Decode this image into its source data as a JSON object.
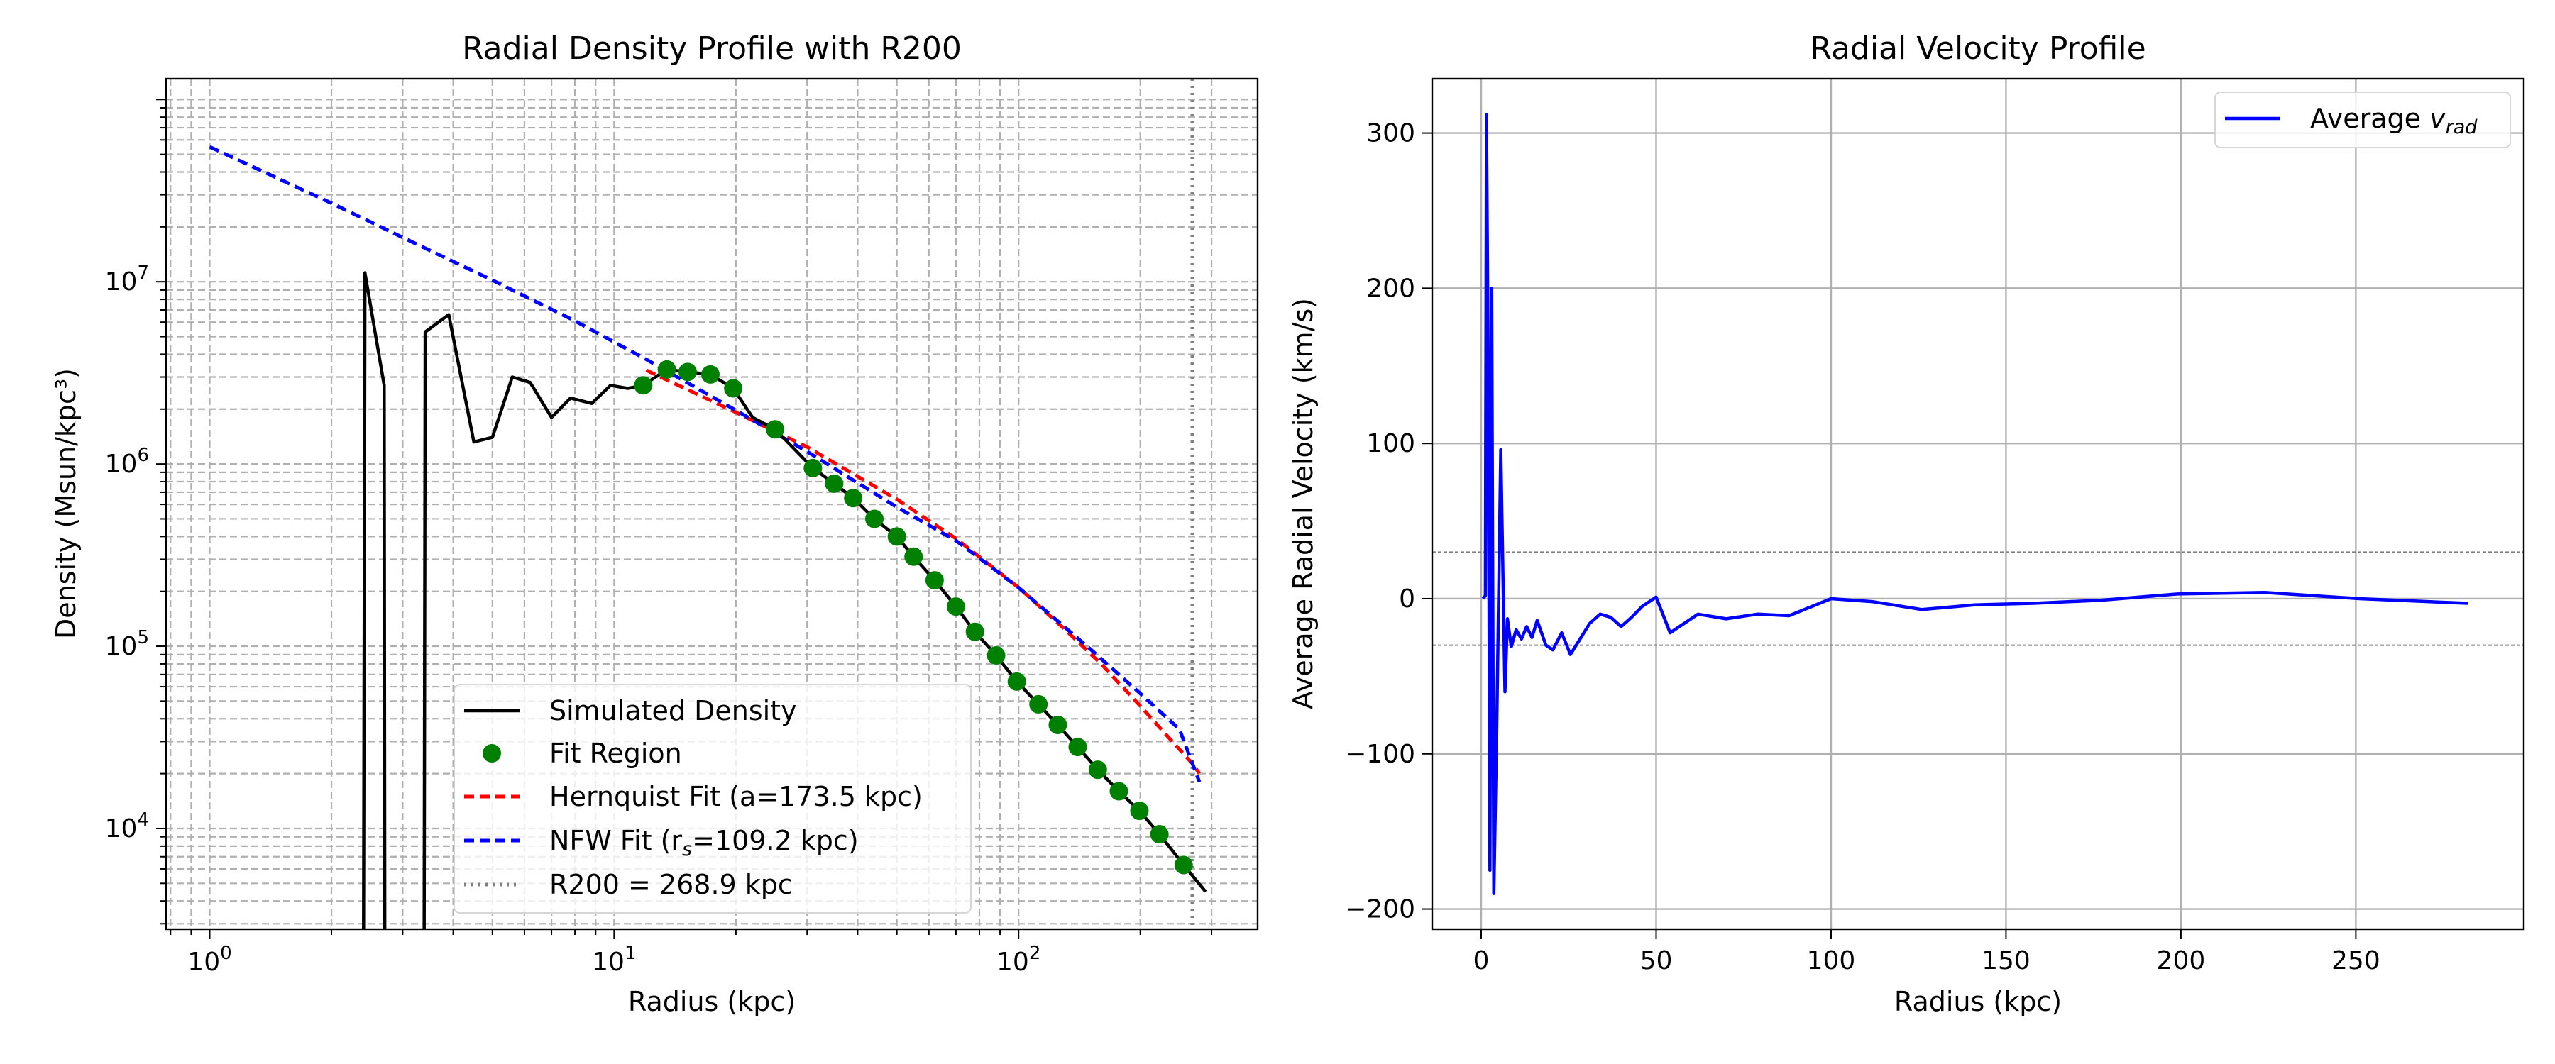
{
  "colors": {
    "simulated": "#000000",
    "fit_region": "#008000",
    "hernquist": "#ff0000",
    "nfw": "#0000ff",
    "r200_line": "#808080",
    "vrad": "#0000ff"
  },
  "chart_data": [
    {
      "type": "line",
      "title": "Radial Density Profile with R200",
      "xlabel": "Radius (kpc)",
      "ylabel": "Density (Msun/kpc³)",
      "xscale": "log",
      "yscale": "log",
      "xlim": [
        0.78,
        390
      ],
      "ylim": [
        2800,
        130000000
      ],
      "x_ticks": [
        {
          "v": 1,
          "e": "0"
        },
        {
          "v": 10,
          "e": "1"
        },
        {
          "v": 100,
          "e": "2"
        }
      ],
      "y_ticks": [
        {
          "v": 10000,
          "e": "4"
        },
        {
          "v": 100000,
          "e": "5"
        },
        {
          "v": 1000000,
          "e": "6"
        },
        {
          "v": 10000000,
          "e": "7"
        }
      ],
      "grid": true,
      "legend_position": "lower-center",
      "legend": [
        {
          "key": "simulated",
          "label": "Simulated Density"
        },
        {
          "key": "fit",
          "label": "Fit Region"
        },
        {
          "key": "hernquist",
          "label": "Hernquist Fit (a=173.5 kpc)"
        },
        {
          "key": "nfw",
          "label_pre": "NFW Fit (r",
          "label_sub": "s",
          "label_post": "=109.2 kpc)"
        },
        {
          "key": "r200",
          "label": "R200 = 268.9 kpc"
        }
      ],
      "series": [
        {
          "key": "simulated",
          "points": [
            [
              2.4,
              0
            ],
            [
              2.42,
              11200000
            ],
            [
              2.7,
              2700000
            ],
            [
              2.71,
              0
            ],
            [
              3.39,
              0
            ],
            [
              3.41,
              5300000
            ],
            [
              3.9,
              6600000
            ],
            [
              4.5,
              1320000
            ],
            [
              5.0,
              1400000
            ],
            [
              5.6,
              3000000
            ],
            [
              6.2,
              2800000
            ],
            [
              7.0,
              1800000
            ],
            [
              7.8,
              2300000
            ],
            [
              8.8,
              2150000
            ],
            [
              9.8,
              2700000
            ],
            [
              10.8,
              2600000
            ],
            [
              11.8,
              2700000
            ],
            [
              13.5,
              3300000
            ],
            [
              15.2,
              3200000
            ],
            [
              17.3,
              3100000
            ],
            [
              19.7,
              2600000
            ],
            [
              22.0,
              1800000
            ],
            [
              25.0,
              1550000
            ],
            [
              31.0,
              950000
            ],
            [
              35.0,
              780000
            ],
            [
              39.0,
              650000
            ],
            [
              44.0,
              500000
            ],
            [
              50.0,
              400000
            ],
            [
              55.0,
              310000
            ],
            [
              62.0,
              230000
            ],
            [
              70.0,
              165000
            ],
            [
              78.0,
              120000
            ],
            [
              88.0,
              89000
            ],
            [
              99.0,
              64000
            ],
            [
              112.0,
              48000
            ],
            [
              125.0,
              37000
            ],
            [
              140.0,
              28000
            ],
            [
              157.0,
              21000
            ],
            [
              177.0,
              16000
            ],
            [
              199.0,
              12500
            ],
            [
              223.0,
              9300
            ],
            [
              256.0,
              6300
            ],
            [
              290.0,
              4500
            ]
          ]
        },
        {
          "key": "fit",
          "points": [
            [
              11.8,
              2700000
            ],
            [
              13.5,
              3300000
            ],
            [
              15.2,
              3200000
            ],
            [
              17.3,
              3100000
            ],
            [
              19.7,
              2600000
            ],
            [
              25.0,
              1550000
            ],
            [
              31.0,
              950000
            ],
            [
              35.0,
              780000
            ],
            [
              39.0,
              650000
            ],
            [
              44.0,
              500000
            ],
            [
              50.0,
              400000
            ],
            [
              55.0,
              310000
            ],
            [
              62.0,
              230000
            ],
            [
              70.0,
              165000
            ],
            [
              78.0,
              120000
            ],
            [
              88.0,
              89000
            ],
            [
              99.0,
              64000
            ],
            [
              112.0,
              48000
            ],
            [
              125.0,
              37000
            ],
            [
              140.0,
              28000
            ],
            [
              157.0,
              21000
            ],
            [
              177.0,
              16000
            ],
            [
              199.0,
              12500
            ],
            [
              223.0,
              9300
            ],
            [
              256.0,
              6300
            ]
          ]
        },
        {
          "key": "hernquist",
          "points": [
            [
              12,
              3270000
            ],
            [
              20,
              1920000
            ],
            [
              30,
              1240000
            ],
            [
              50,
              640000
            ],
            [
              70,
              390000
            ],
            [
              100,
              210000
            ],
            [
              130,
              124000
            ],
            [
              160,
              80000
            ],
            [
              200,
              47000
            ],
            [
              240,
              30000
            ],
            [
              270,
              22500
            ],
            [
              280,
              20000
            ]
          ]
        },
        {
          "key": "nfw",
          "points": [
            [
              1,
              55000000
            ],
            [
              2,
              27000000
            ],
            [
              3,
              17500000
            ],
            [
              5,
              10200000
            ],
            [
              8,
              6100000
            ],
            [
              12,
              3750000
            ],
            [
              20,
              1970000
            ],
            [
              30,
              1170000
            ],
            [
              50,
              580000
            ],
            [
              70,
              380000
            ],
            [
              100,
              210000
            ],
            [
              150,
              97000
            ],
            [
              200,
              55000
            ],
            [
              250,
              35000
            ],
            [
              280,
              18000
            ]
          ]
        }
      ],
      "r200_x": 268.9
    },
    {
      "type": "line",
      "title": "Radial Velocity Profile",
      "xlabel": "Radius (kpc)",
      "ylabel": "Average Radial Velocity (km/s)",
      "xlim": [
        -14,
        298
      ],
      "ylim": [
        -213,
        335
      ],
      "x_ticks": [
        0,
        50,
        100,
        150,
        200,
        250
      ],
      "y_ticks": [
        -200,
        -100,
        0,
        100,
        200,
        300
      ],
      "grid": true,
      "legend_position": "top-right",
      "legend": [
        {
          "key": "vrad",
          "label_pre": "Average ",
          "label_italic": "v",
          "label_sub": "rad"
        }
      ],
      "reference_lines": [
        30,
        -30
      ],
      "series": [
        {
          "key": "vrad",
          "points": [
            [
              0.5,
              0
            ],
            [
              1.2,
              2
            ],
            [
              1.5,
              312
            ],
            [
              2.0,
              150
            ],
            [
              2.5,
              -175
            ],
            [
              3.0,
              200
            ],
            [
              3.6,
              -190
            ],
            [
              4.4,
              -90
            ],
            [
              5.6,
              96
            ],
            [
              6.8,
              -60
            ],
            [
              7.5,
              -13
            ],
            [
              8.6,
              -31
            ],
            [
              10.0,
              -20
            ],
            [
              11.5,
              -26
            ],
            [
              13.0,
              -18
            ],
            [
              14.5,
              -25
            ],
            [
              16.0,
              -14
            ],
            [
              18.5,
              -30
            ],
            [
              20.5,
              -33
            ],
            [
              23.0,
              -22
            ],
            [
              25.5,
              -36
            ],
            [
              28.0,
              -27
            ],
            [
              31.0,
              -16
            ],
            [
              34.0,
              -10
            ],
            [
              37.0,
              -12
            ],
            [
              40.0,
              -18
            ],
            [
              43.0,
              -12
            ],
            [
              46.0,
              -5
            ],
            [
              50.0,
              1
            ],
            [
              54.0,
              -22
            ],
            [
              62.0,
              -10
            ],
            [
              70.0,
              -13
            ],
            [
              79.0,
              -10
            ],
            [
              88.0,
              -11
            ],
            [
              100.0,
              0
            ],
            [
              112.0,
              -2
            ],
            [
              126.0,
              -7
            ],
            [
              141.0,
              -4
            ],
            [
              158.0,
              -3
            ],
            [
              177.0,
              -1
            ],
            [
              199.0,
              3
            ],
            [
              224.0,
              4
            ],
            [
              251.0,
              0
            ],
            [
              282.0,
              -3
            ]
          ]
        }
      ]
    }
  ]
}
